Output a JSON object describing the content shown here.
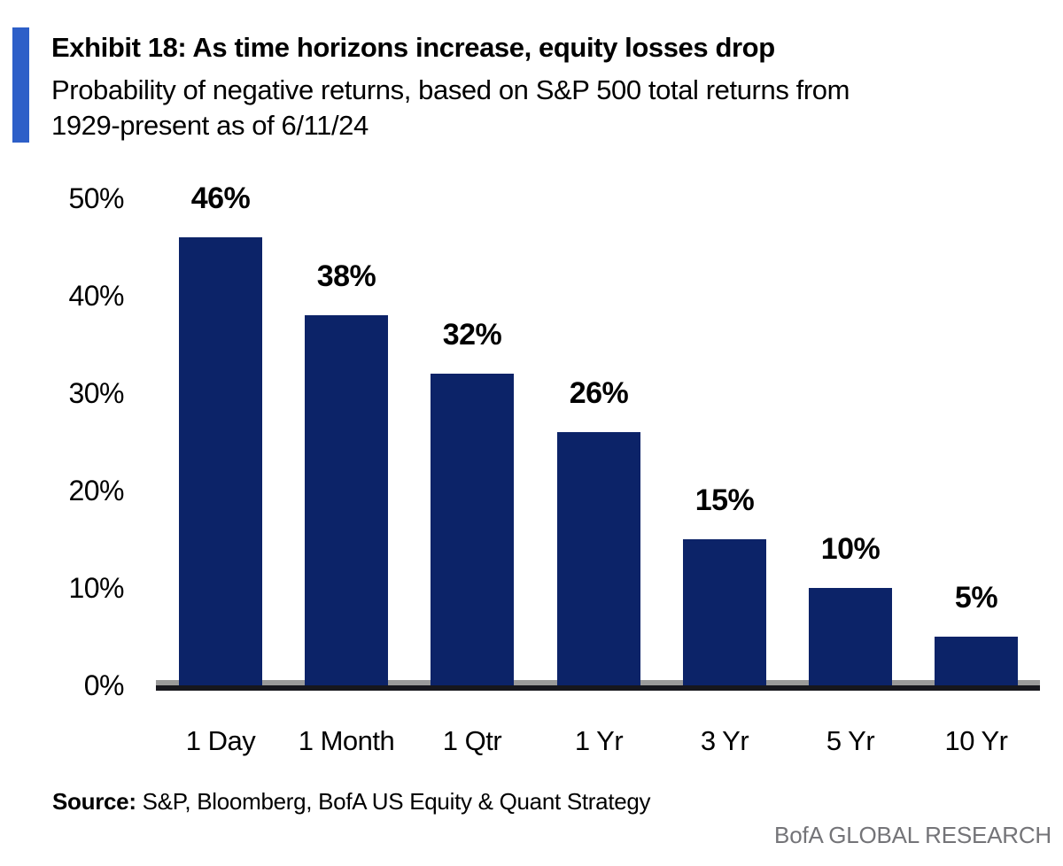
{
  "header": {
    "exhibit_title": "Exhibit 18: As time horizons increase, equity losses drop",
    "subtitle_line1": "Probability of negative returns, based on S&P 500 total returns from",
    "subtitle_line2": "1929-present as of 6/11/24"
  },
  "chart_data": {
    "type": "bar",
    "title": "Exhibit 18: As time horizons increase, equity losses drop",
    "subtitle": "Probability of negative returns, based on S&P 500 total returns from 1929-present as of 6/11/24",
    "categories": [
      "1 Day",
      "1 Month",
      "1 Qtr",
      "1 Yr",
      "3 Yr",
      "5 Yr",
      "10 Yr"
    ],
    "values": [
      46,
      38,
      32,
      26,
      15,
      10,
      5
    ],
    "value_labels": [
      "46%",
      "38%",
      "32%",
      "26%",
      "15%",
      "10%",
      "5%"
    ],
    "xlabel": "",
    "ylabel": "",
    "ylim": [
      0,
      50
    ],
    "yticks": [
      0,
      10,
      20,
      30,
      40,
      50
    ],
    "ytick_labels": [
      "0%",
      "10%",
      "20%",
      "30%",
      "40%",
      "50%"
    ],
    "grid": false,
    "legend": false,
    "bar_color": "#0c2368"
  },
  "footer": {
    "source_label": "Source:",
    "source_text": " S&P, Bloomberg, BofA US Equity & Quant Strategy",
    "brand": "BofA GLOBAL RESEARCH"
  },
  "colors": {
    "accent_bar": "#2d5fc8",
    "bar": "#0c2368",
    "axis_gray": "#9a9a9a",
    "axis_dark": "#17171d",
    "brand_gray": "#747478",
    "text": "#000000",
    "background": "#ffffff"
  }
}
